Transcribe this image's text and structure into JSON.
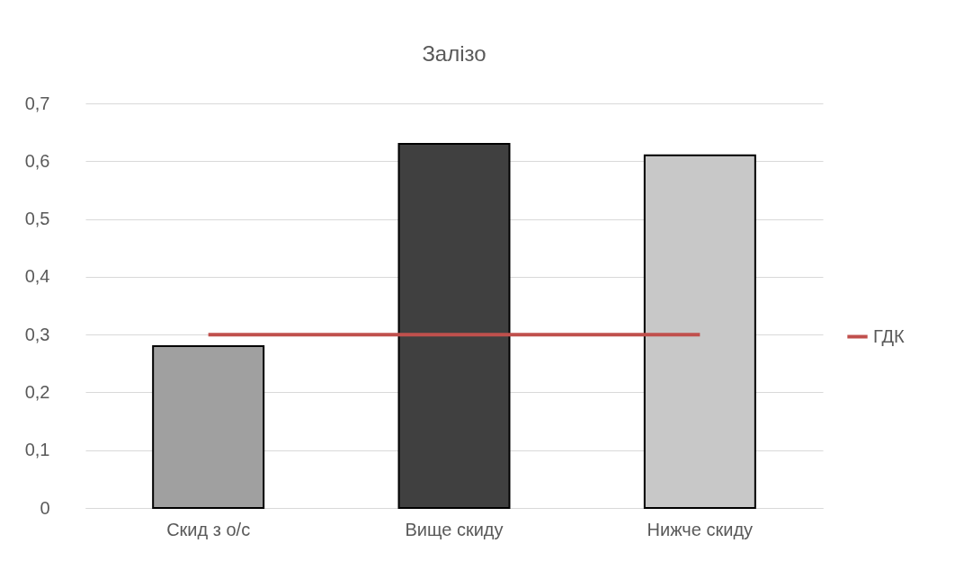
{
  "chart_data": {
    "type": "bar",
    "title": "Залізо",
    "categories": [
      "Скид з о/с",
      "Вище скиду",
      "Нижче скиду"
    ],
    "series": [
      {
        "colors": [
          "#a0a0a0",
          "#404040",
          "#c8c8c8"
        ],
        "values": [
          0.28,
          0.63,
          0.61
        ]
      },
      {
        "type": "line",
        "name": "ГДК",
        "color": "#c0504d",
        "values": [
          0.3,
          0.3,
          0.3
        ]
      }
    ],
    "ylim": [
      0,
      0.7
    ],
    "yticks": [
      {
        "value": 0,
        "label": "0"
      },
      {
        "value": 0.1,
        "label": "0,1"
      },
      {
        "value": 0.2,
        "label": "0,2"
      },
      {
        "value": 0.3,
        "label": "0,3"
      },
      {
        "value": 0.4,
        "label": "0,4"
      },
      {
        "value": 0.5,
        "label": "0,5"
      },
      {
        "value": 0.6,
        "label": "0,6"
      },
      {
        "value": 0.7,
        "label": "0,7"
      }
    ],
    "grid": "y",
    "legend": "right"
  }
}
